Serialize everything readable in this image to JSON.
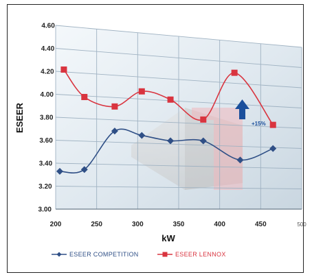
{
  "chart_data": {
    "type": "line",
    "xlabel": "kW",
    "ylabel": "ESEER",
    "xlim": [
      200,
      500
    ],
    "ylim": [
      3.0,
      4.6
    ],
    "x_ticks": [
      "200",
      "250",
      "300",
      "350",
      "400",
      "450",
      "500"
    ],
    "y_ticks": [
      "3.00",
      "3.20",
      "3.40",
      "3.60",
      "3.80",
      "4.00",
      "4.20",
      "4.40",
      "4.60"
    ],
    "grid": true,
    "legend_position": "bottom",
    "annotation": {
      "text": "+15%",
      "color": "#1a4f9c"
    },
    "series": [
      {
        "name": "ESEER COMPETITION",
        "color": "#2f4f86",
        "marker": "diamond",
        "x": [
          205,
          235,
          272,
          305,
          340,
          380,
          425,
          465
        ],
        "y": [
          3.33,
          3.35,
          3.7,
          3.67,
          3.63,
          3.64,
          3.47,
          3.59
        ]
      },
      {
        "name": "ESEER LENNOX",
        "color": "#d9343f",
        "marker": "square",
        "x": [
          210,
          235,
          272,
          305,
          340,
          380,
          418,
          465
        ],
        "y": [
          4.22,
          3.99,
          3.92,
          4.07,
          4.01,
          3.84,
          4.3,
          3.82
        ]
      }
    ]
  }
}
